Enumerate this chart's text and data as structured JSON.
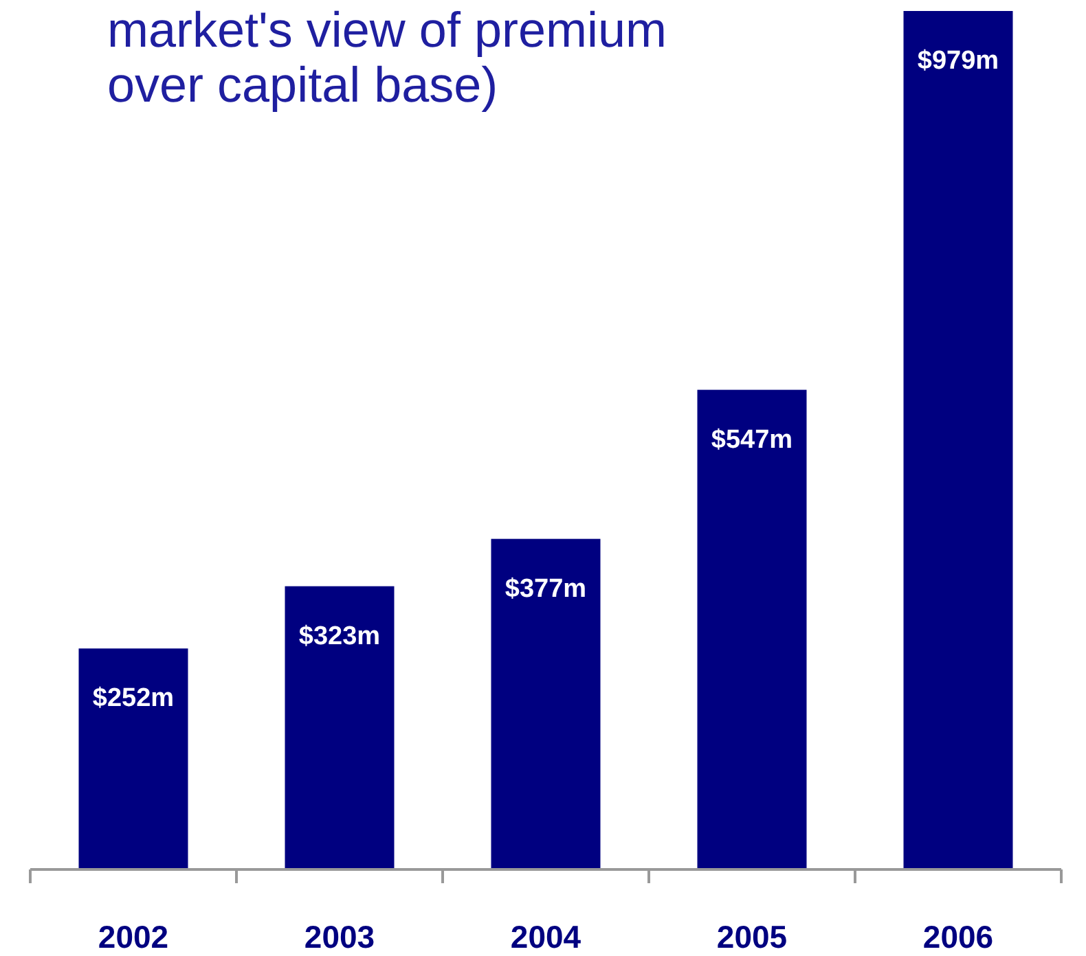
{
  "chart_data": {
    "type": "bar",
    "title": "market's view of premium over capital base)",
    "categories": [
      "2002",
      "2003",
      "2004",
      "2005",
      "2006"
    ],
    "values": [
      252,
      323,
      377,
      547,
      979
    ],
    "value_labels": [
      "$252m",
      "$323m",
      "$377m",
      "$547m",
      "$979m"
    ],
    "color": "#000080"
  }
}
